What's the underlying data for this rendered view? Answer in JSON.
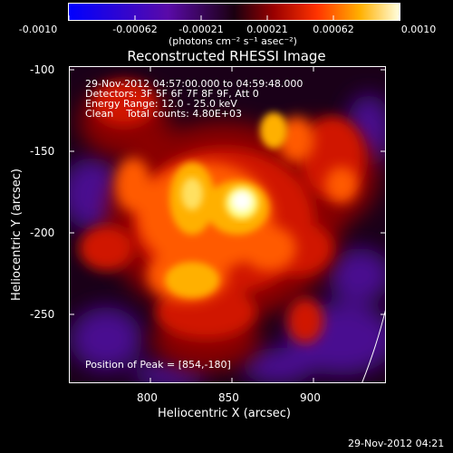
{
  "colorbar": {
    "ticks": [
      "-0.0010",
      "-0.00062",
      "-0.00021",
      "0.00021",
      "0.00062",
      "0.0010"
    ],
    "units": "(photons cm⁻² s⁻¹ asec⁻²)"
  },
  "title": "Reconstructed RHESSI Image",
  "info": {
    "time_range": "29-Nov-2012 04:57:00.000 to 04:59:48.000",
    "detectors": "Detectors: 3F 5F 6F 7F 8F 9F, Att 0",
    "energy": "Energy Range: 12.0 - 25.0 keV",
    "clean": "Clean    Total counts: 4.80E+03",
    "peak": "Position of Peak = [854,-180]"
  },
  "axes": {
    "xlabel": "Heliocentric X (arcsec)",
    "ylabel": "Heliocentric Y (arcsec)",
    "xticks": [
      "800",
      "850",
      "900"
    ],
    "yticks": [
      "-100",
      "-150",
      "-200",
      "-250"
    ]
  },
  "footer": "29-Nov-2012 04:21",
  "colors": {
    "negative": "#3a0a8a",
    "positive_peak": "#ffffd0",
    "background": "#000000"
  }
}
